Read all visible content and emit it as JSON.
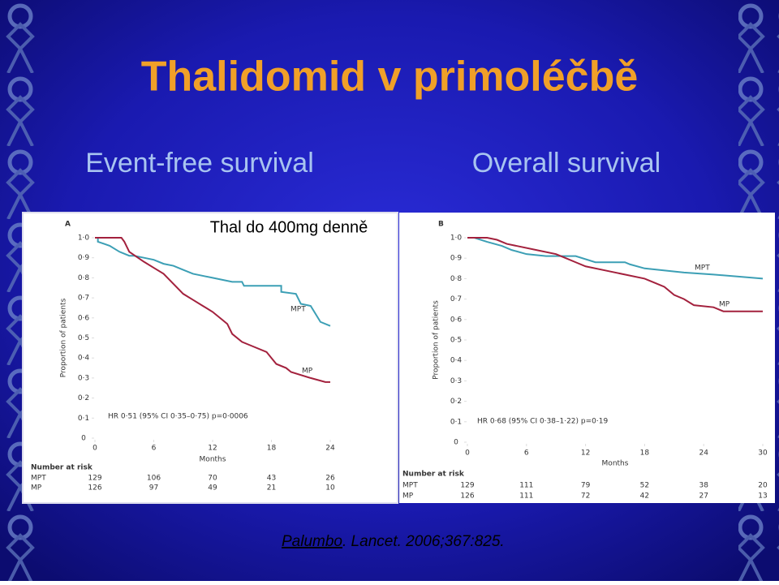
{
  "slide": {
    "title": "Thalidomid v primoléčbě",
    "citation_author": "Palumbo",
    "citation_rest": ". Lancet. 2006;367:825."
  },
  "chart_data": [
    {
      "type": "km",
      "title": "Event-free survival",
      "subtitle": "Thal do 400mg denně",
      "panel_label": "A",
      "annotation": "HR 0·51 (95% CI 0·35–0·75) p=0·0006",
      "xlabel": "Months",
      "ylabel": "Proportion of patients",
      "at_risk_title": "Number at risk",
      "xlim": [
        0,
        24
      ],
      "xticks": [
        0,
        6,
        12,
        18,
        24
      ],
      "ylim": [
        0,
        1
      ],
      "yticks": [
        0,
        {
          "value": 0.1,
          "label": "0·1"
        },
        {
          "value": 0.2,
          "label": "0·2"
        },
        {
          "value": 0.3,
          "label": "0·3"
        },
        {
          "value": 0.4,
          "label": "0·4"
        },
        {
          "value": 0.5,
          "label": "0·5"
        },
        {
          "value": 0.6,
          "label": "0·6"
        },
        {
          "value": 0.7,
          "label": "0·7"
        },
        {
          "value": 0.8,
          "label": "0·8"
        },
        {
          "value": 0.9,
          "label": "0·9"
        },
        {
          "value": 1.0,
          "label": "1·0"
        }
      ],
      "series": [
        {
          "name": "MPT",
          "color": "#3c9fb5",
          "x": [
            0,
            0.3,
            0.3,
            1.5,
            2.5,
            3.5,
            4,
            5,
            6,
            7,
            8,
            9,
            10,
            11,
            12,
            13,
            14,
            15,
            15.2,
            19,
            19,
            20.5,
            21,
            22,
            23,
            24
          ],
          "values": [
            1.0,
            1.0,
            0.98,
            0.96,
            0.93,
            0.91,
            0.91,
            0.9,
            0.89,
            0.87,
            0.86,
            0.84,
            0.82,
            0.81,
            0.8,
            0.79,
            0.78,
            0.78,
            0.76,
            0.76,
            0.73,
            0.72,
            0.67,
            0.66,
            0.58,
            0.56
          ],
          "at_risk": [
            129,
            106,
            70,
            43,
            26
          ]
        },
        {
          "name": "MP",
          "color": "#a3213d",
          "x": [
            0,
            2.7,
            3,
            3.5,
            5,
            6,
            7,
            8,
            9,
            10,
            11,
            12,
            13,
            13.5,
            14,
            15,
            16,
            17.5,
            18,
            18.5,
            19.5,
            20,
            22,
            23.5,
            24
          ],
          "values": [
            1.0,
            1.0,
            0.98,
            0.93,
            0.88,
            0.85,
            0.82,
            0.77,
            0.72,
            0.69,
            0.66,
            0.63,
            0.59,
            0.57,
            0.52,
            0.48,
            0.46,
            0.43,
            0.4,
            0.37,
            0.35,
            0.33,
            0.3,
            0.28,
            0.28
          ],
          "at_risk": [
            126,
            97,
            49,
            21,
            10
          ]
        }
      ]
    },
    {
      "type": "km",
      "title": "Overall survival",
      "panel_label": "B",
      "annotation": "HR 0·68 (95% CI 0·38–1·22) p=0·19",
      "xlabel": "Months",
      "ylabel": "Proportion of patients",
      "at_risk_title": "Number at risk",
      "xlim": [
        0,
        30
      ],
      "xticks": [
        0,
        6,
        12,
        18,
        24,
        30
      ],
      "ylim": [
        0,
        1
      ],
      "yticks": [
        0,
        {
          "value": 0.1,
          "label": "0·1"
        },
        {
          "value": 0.2,
          "label": "0·2"
        },
        {
          "value": 0.3,
          "label": "0·3"
        },
        {
          "value": 0.4,
          "label": "0·4"
        },
        {
          "value": 0.5,
          "label": "0·5"
        },
        {
          "value": 0.6,
          "label": "0·6"
        },
        {
          "value": 0.7,
          "label": "0·7"
        },
        {
          "value": 0.8,
          "label": "0·8"
        },
        {
          "value": 0.9,
          "label": "0·9"
        },
        {
          "value": 1.0,
          "label": "1·0"
        }
      ],
      "series": [
        {
          "name": "MPT",
          "color": "#3c9fb5",
          "x": [
            0,
            0.7,
            2,
            3.5,
            4.5,
            6,
            8,
            11,
            13,
            16,
            16.5,
            18,
            22,
            25,
            30
          ],
          "values": [
            1.0,
            1.0,
            0.98,
            0.96,
            0.94,
            0.92,
            0.91,
            0.91,
            0.88,
            0.88,
            0.87,
            0.85,
            0.83,
            0.82,
            0.8
          ],
          "at_risk": [
            129,
            111,
            79,
            52,
            38,
            20
          ]
        },
        {
          "name": "MP",
          "color": "#a3213d",
          "x": [
            0,
            2,
            3,
            4,
            5,
            7,
            9,
            10,
            11,
            12,
            14,
            16,
            18,
            19,
            20,
            21,
            22,
            23,
            25,
            26,
            30
          ],
          "values": [
            1.0,
            1.0,
            0.99,
            0.97,
            0.96,
            0.94,
            0.92,
            0.9,
            0.88,
            0.86,
            0.84,
            0.82,
            0.8,
            0.78,
            0.76,
            0.72,
            0.7,
            0.67,
            0.66,
            0.64,
            0.64
          ],
          "at_risk": [
            126,
            111,
            72,
            42,
            27,
            13
          ]
        }
      ]
    }
  ]
}
